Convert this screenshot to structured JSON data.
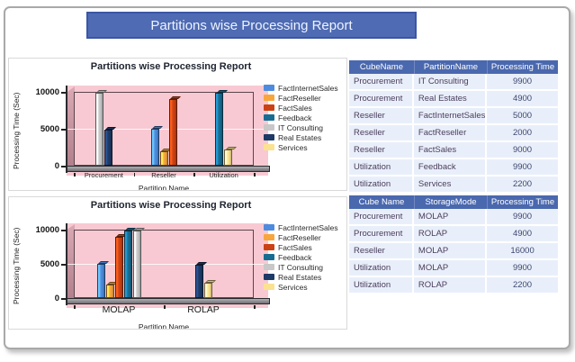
{
  "window": {
    "banner_title": "Partitions wise Processing Report"
  },
  "colors": {
    "banner_bg": "#4E6BB3",
    "banner_border": "#3A57A5",
    "table_header_bg": "#4A68AE",
    "table_row_bg": "#E9EFFA",
    "plot_bg": "#F8C9D2"
  },
  "chart_data": [
    {
      "type": "bar",
      "style": "3d-column",
      "title": "Partitions wise Processing Report",
      "ylabel": "Processing Time (Sec)",
      "xlabel": "Partition Name",
      "ylim": [
        0,
        10000
      ],
      "yticks": [
        0,
        5000,
        10000
      ],
      "grid": "horizontal-5000",
      "legend_position": "right",
      "categories": [
        "Procurement",
        "Reseller",
        "Utilization"
      ],
      "series": [
        {
          "name": "FactInternetSales",
          "color": "#4E8BDE",
          "values": [
            null,
            5000,
            null
          ]
        },
        {
          "name": "FactReseller",
          "color": "#F7A63E",
          "values": [
            null,
            2000,
            null
          ]
        },
        {
          "name": "FactSales",
          "color": "#CB4214",
          "values": [
            null,
            9000,
            null
          ]
        },
        {
          "name": "Feedback",
          "color": "#186C92",
          "values": [
            null,
            null,
            9900
          ]
        },
        {
          "name": "IT Consulting",
          "color": "#C8C8C8",
          "values": [
            9900,
            null,
            null
          ]
        },
        {
          "name": "Real Estates",
          "color": "#1E3A66",
          "values": [
            4900,
            null,
            null
          ]
        },
        {
          "name": "Services",
          "color": "#FBE291",
          "values": [
            null,
            null,
            2200
          ]
        }
      ]
    },
    {
      "type": "bar",
      "style": "3d-column",
      "title": "Partitions wise Processing Report",
      "ylabel": "Processing Time (Sec)",
      "xlabel": "Partition Name",
      "ylim": [
        0,
        10000
      ],
      "yticks": [
        0,
        5000,
        10000
      ],
      "grid": "horizontal-5000",
      "legend_position": "right",
      "categories": [
        "MOLAP",
        "ROLAP"
      ],
      "series": [
        {
          "name": "FactInternetSales",
          "color": "#4E8BDE",
          "values": [
            5000,
            null
          ]
        },
        {
          "name": "FactReseller",
          "color": "#F7A63E",
          "values": [
            2000,
            null
          ]
        },
        {
          "name": "FactSales",
          "color": "#CB4214",
          "values": [
            9000,
            null
          ]
        },
        {
          "name": "Feedback",
          "color": "#186C92",
          "values": [
            9900,
            null
          ]
        },
        {
          "name": "IT Consulting",
          "color": "#C8C8C8",
          "values": [
            9900,
            null
          ]
        },
        {
          "name": "Real Estates",
          "color": "#1E3A66",
          "values": [
            null,
            4900
          ]
        },
        {
          "name": "Services",
          "color": "#FBE291",
          "values": [
            null,
            2200
          ]
        }
      ]
    }
  ],
  "tables": [
    {
      "headers": [
        "CubeName",
        "PartitionName",
        "Processing Time"
      ],
      "rows": [
        [
          "Procurement",
          "IT Consulting",
          "9900"
        ],
        [
          "Procurement",
          "Real Estates",
          "4900"
        ],
        [
          "Reseller",
          "FactInternetSales",
          "5000"
        ],
        [
          "Reseller",
          "FactReseller",
          "2000"
        ],
        [
          "Reseller",
          "FactSales",
          "9000"
        ],
        [
          "Utilization",
          "Feedback",
          "9900"
        ],
        [
          "Utilization",
          "Services",
          "2200"
        ]
      ]
    },
    {
      "headers": [
        "Cube Name",
        "StorageMode",
        "Processing Time"
      ],
      "rows": [
        [
          "Procurement",
          "MOLAP",
          "9900"
        ],
        [
          "Procurement",
          "ROLAP",
          "4900"
        ],
        [
          "Reseller",
          "MOLAP",
          "16000"
        ],
        [
          "Utilization",
          "MOLAP",
          "9900"
        ],
        [
          "Utilization",
          "ROLAP",
          "2200"
        ]
      ]
    }
  ]
}
